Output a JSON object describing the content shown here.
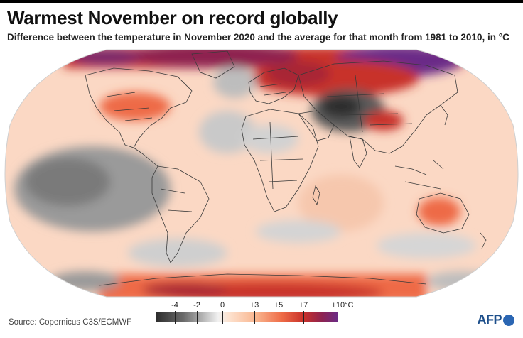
{
  "title": "Warmest November on record globally",
  "subtitle": "Difference between the temperature in November 2020 and the average for that month from 1981 to 2010, in °C",
  "legend": {
    "ticks": [
      "-4",
      "-2",
      "0",
      "+3",
      "+5",
      "+7",
      "+10°C"
    ],
    "colors": [
      "#2e2e2e",
      "#b9b9b9",
      "#f1f1f1",
      "#f9b58e",
      "#ee6b47",
      "#c8312a",
      "#6a2b87"
    ]
  },
  "map": {
    "projection": "world-map",
    "ocean_anomaly_color": "#fbd8c4",
    "land_outline_color": "#3a3a3a"
  },
  "source": "Source: Copernicus C3S/ECMWF",
  "logo": {
    "text": "AFP"
  }
}
